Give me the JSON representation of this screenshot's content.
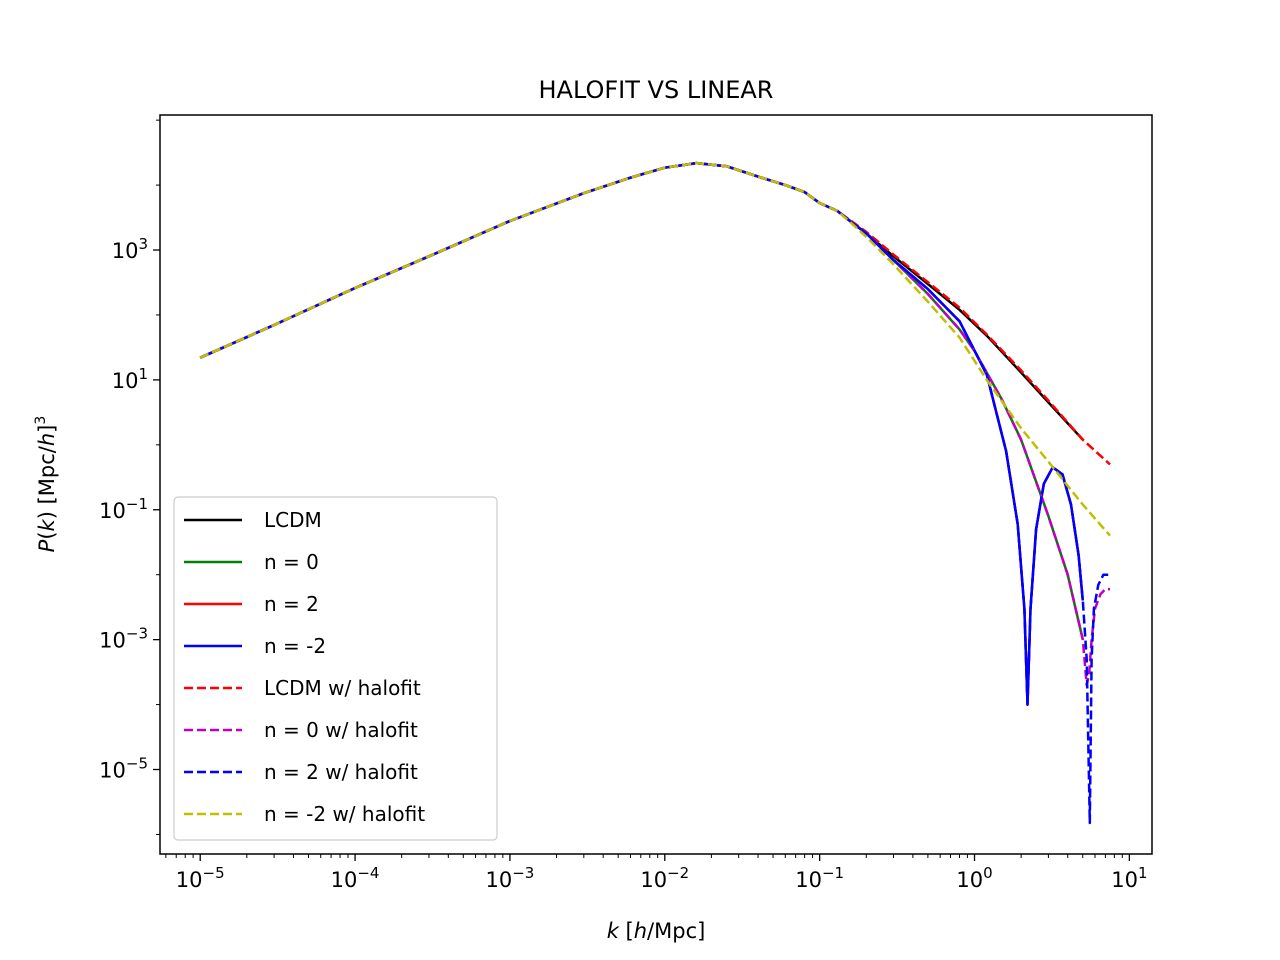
{
  "chart_data": {
    "type": "line",
    "title": "HALOFIT VS LINEAR",
    "xlabel": "k  [h/Mpc]",
    "ylabel": "P(k)  [Mpc/h]^3",
    "xscale": "log",
    "yscale": "log",
    "xlim": [
      5.5e-06,
      14
    ],
    "ylim": [
      5e-07,
      120000.0
    ],
    "grid": false,
    "legend_position": "lower-left",
    "x_ticks": [
      {
        "value": 1e-05,
        "base": "10",
        "exp": "−5"
      },
      {
        "value": 0.0001,
        "base": "10",
        "exp": "−4"
      },
      {
        "value": 0.001,
        "base": "10",
        "exp": "−3"
      },
      {
        "value": 0.01,
        "base": "10",
        "exp": "−2"
      },
      {
        "value": 0.1,
        "base": "10",
        "exp": "−1"
      },
      {
        "value": 1,
        "base": "10",
        "exp": "0"
      },
      {
        "value": 10,
        "base": "10",
        "exp": "1"
      }
    ],
    "y_ticks": [
      {
        "value": 1e-05,
        "base": "10",
        "exp": "−5"
      },
      {
        "value": 0.001,
        "base": "10",
        "exp": "−3"
      },
      {
        "value": 0.1,
        "base": "10",
        "exp": "−1"
      },
      {
        "value": 10,
        "base": "10",
        "exp": "1"
      },
      {
        "value": 1000,
        "base": "10",
        "exp": "3"
      }
    ],
    "series": [
      {
        "name": "LCDM",
        "color": "#000000",
        "dashed": false,
        "x": [
          1e-05,
          3e-05,
          0.0001,
          0.0003,
          0.001,
          0.003,
          0.006,
          0.01,
          0.016,
          0.025,
          0.04,
          0.06,
          0.08,
          0.1,
          0.13,
          0.16,
          0.2,
          0.3,
          0.5,
          0.8,
          1.2,
          2,
          3,
          5
        ],
        "y": [
          22,
          70,
          260,
          800,
          2800,
          7500,
          13000,
          18500,
          21800,
          19500,
          13500,
          10000,
          7800,
          5300,
          4000,
          2700,
          1800,
          800,
          300,
          120,
          48,
          13,
          4.5,
          1.2
        ]
      },
      {
        "name": "n = 0",
        "color": "#008000",
        "dashed": false,
        "x": [
          1e-05,
          3e-05,
          0.0001,
          0.0003,
          0.001,
          0.003,
          0.006,
          0.01,
          0.016,
          0.025,
          0.04,
          0.06,
          0.08,
          0.1,
          0.13,
          0.16,
          0.2,
          0.3,
          0.5,
          0.8,
          1.0,
          1.5,
          2.0,
          3.0,
          4.0,
          5.0
        ],
        "y": [
          22,
          70,
          260,
          800,
          2800,
          7500,
          13000,
          18500,
          21800,
          19500,
          13500,
          10000,
          7800,
          5300,
          4000,
          2700,
          1800,
          700,
          210,
          60,
          28,
          5,
          1.2,
          0.08,
          0.01,
          0.001
        ]
      },
      {
        "name": "n = 2",
        "color": "#ff0000",
        "dashed": false,
        "x": [
          1e-05,
          3e-05,
          0.0001,
          0.0003,
          0.001,
          0.003,
          0.006,
          0.01,
          0.016,
          0.025,
          0.04,
          0.06,
          0.08,
          0.1,
          0.13,
          0.16,
          0.2,
          0.3,
          0.5,
          0.8,
          1.2,
          1.6,
          1.9,
          2.1,
          2.2,
          2.3,
          2.5,
          2.8,
          3.2,
          3.7,
          4.2,
          4.7,
          5.0
        ],
        "y": [
          22,
          70,
          260,
          800,
          2800,
          7500,
          13000,
          18500,
          21800,
          19500,
          13500,
          10000,
          7800,
          5300,
          4000,
          2700,
          1800,
          700,
          250,
          80,
          12,
          0.8,
          0.06,
          0.003,
          0.0001,
          0.003,
          0.05,
          0.25,
          0.45,
          0.35,
          0.12,
          0.02,
          0.004
        ]
      },
      {
        "name": "n = -2",
        "color": "#0000ff",
        "dashed": false,
        "x": [
          1e-05,
          3e-05,
          0.0001,
          0.0003,
          0.001,
          0.003,
          0.006,
          0.01,
          0.016,
          0.025,
          0.04,
          0.06,
          0.08,
          0.1,
          0.13,
          0.16,
          0.2,
          0.3,
          0.5,
          0.8,
          1.2,
          1.6,
          1.9,
          2.1,
          2.2,
          2.3,
          2.5,
          2.8,
          3.2,
          3.7,
          4.2,
          4.7,
          5.0
        ],
        "y": [
          22,
          70,
          260,
          800,
          2800,
          7500,
          13000,
          18500,
          21800,
          19500,
          13500,
          10000,
          7800,
          5300,
          4000,
          2700,
          1800,
          700,
          250,
          80,
          12,
          0.8,
          0.06,
          0.003,
          0.0001,
          0.003,
          0.05,
          0.25,
          0.45,
          0.35,
          0.12,
          0.02,
          0.004
        ]
      },
      {
        "name": "LCDM w/ halofit",
        "color": "#ff0000",
        "dashed": true,
        "x": [
          1e-05,
          3e-05,
          0.0001,
          0.0003,
          0.001,
          0.003,
          0.006,
          0.01,
          0.016,
          0.025,
          0.04,
          0.06,
          0.08,
          0.1,
          0.13,
          0.16,
          0.2,
          0.3,
          0.5,
          0.8,
          1.2,
          2,
          3,
          5,
          7.5
        ],
        "y": [
          22,
          70,
          260,
          800,
          2800,
          7500,
          13000,
          18500,
          21800,
          19500,
          13500,
          10000,
          7800,
          5300,
          4000,
          2800,
          1900,
          850,
          320,
          130,
          50,
          14,
          4.8,
          1.2,
          0.5
        ]
      },
      {
        "name": "n = 0 w/ halofit",
        "color": "#bf00bf",
        "dashed": true,
        "x": [
          1e-05,
          3e-05,
          0.0001,
          0.0003,
          0.001,
          0.003,
          0.006,
          0.01,
          0.016,
          0.025,
          0.04,
          0.06,
          0.08,
          0.1,
          0.13,
          0.16,
          0.2,
          0.3,
          0.5,
          0.8,
          1.0,
          1.5,
          2.0,
          3.0,
          4.0,
          5.0,
          5.3,
          5.5,
          5.7,
          6.0,
          6.5,
          7.0,
          7.5
        ],
        "y": [
          22,
          70,
          260,
          800,
          2800,
          7500,
          13000,
          18500,
          21800,
          19500,
          13500,
          10000,
          7800,
          5300,
          4000,
          2700,
          1800,
          700,
          210,
          60,
          28,
          5,
          1.2,
          0.08,
          0.01,
          0.001,
          0.0002,
          0.0003,
          0.001,
          0.003,
          0.005,
          0.006,
          0.006
        ]
      },
      {
        "name": "n = 2 w/ halofit",
        "color": "#0000ff",
        "dashed": true,
        "x": [
          1e-05,
          3e-05,
          0.0001,
          0.0003,
          0.001,
          0.003,
          0.006,
          0.01,
          0.016,
          0.025,
          0.04,
          0.06,
          0.08,
          0.1,
          0.13,
          0.16,
          0.2,
          0.3,
          0.5,
          0.8,
          1.2,
          1.6,
          1.9,
          2.1,
          2.2,
          2.3,
          2.5,
          2.8,
          3.2,
          3.7,
          4.2,
          4.7,
          5.0,
          5.3,
          5.55,
          5.7,
          5.9,
          6.3,
          6.8,
          7.3
        ],
        "y": [
          22,
          70,
          260,
          800,
          2800,
          7500,
          13000,
          18500,
          21800,
          19500,
          13500,
          10000,
          7800,
          5300,
          4000,
          2700,
          1800,
          700,
          250,
          80,
          12,
          0.8,
          0.06,
          0.003,
          0.0001,
          0.003,
          0.05,
          0.25,
          0.45,
          0.35,
          0.12,
          0.02,
          0.004,
          0.0005,
          1.5e-06,
          0.0005,
          0.003,
          0.007,
          0.01,
          0.01
        ]
      },
      {
        "name": "n = -2 w/ halofit",
        "color": "#bfbf00",
        "dashed": true,
        "x": [
          1e-05,
          3e-05,
          0.0001,
          0.0003,
          0.001,
          0.003,
          0.006,
          0.01,
          0.016,
          0.025,
          0.04,
          0.06,
          0.08,
          0.1,
          0.13,
          0.16,
          0.2,
          0.3,
          0.5,
          0.8,
          1.2,
          2,
          3,
          5,
          7.5
        ],
        "y": [
          22,
          70,
          260,
          800,
          2800,
          7500,
          13000,
          18500,
          21800,
          19500,
          13500,
          10000,
          7800,
          5300,
          4000,
          2600,
          1600,
          600,
          160,
          45,
          10,
          1.8,
          0.55,
          0.12,
          0.04
        ]
      }
    ]
  }
}
